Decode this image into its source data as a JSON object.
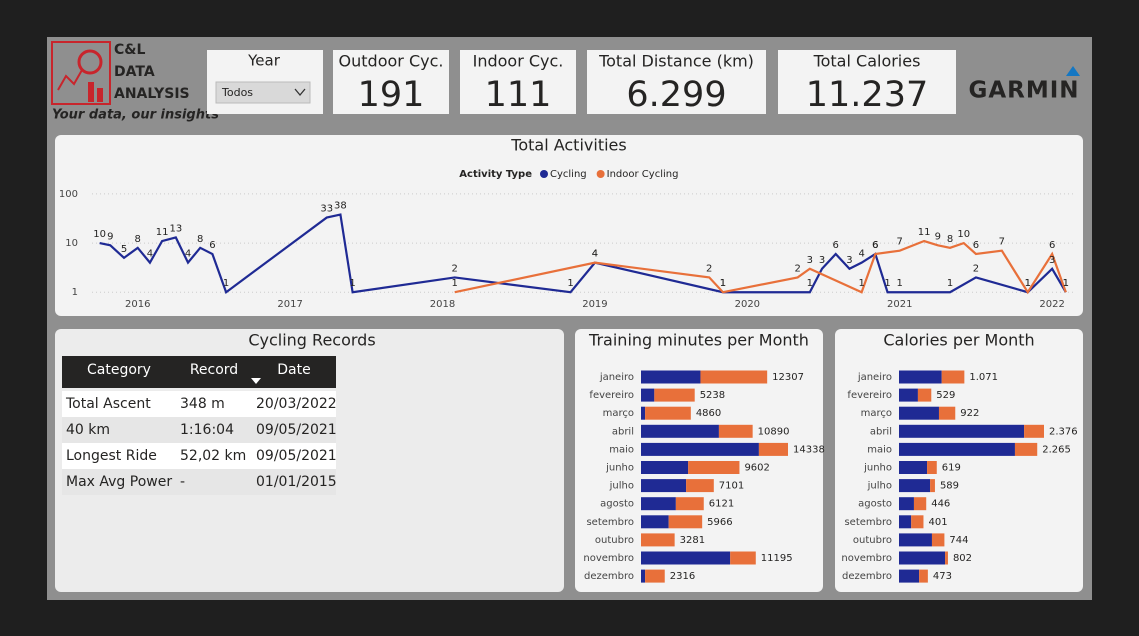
{
  "header": {
    "logo": [
      "C&L",
      "DATA",
      "ANALYSIS"
    ],
    "tagline": "Your data, our insights",
    "brand": "GARMIN"
  },
  "slicer": {
    "label": "Year",
    "value": "Todos"
  },
  "cards": [
    {
      "label": "Outdoor Cyc.",
      "value": "191"
    },
    {
      "label": "Indoor Cyc.",
      "value": "111"
    },
    {
      "label": "Total Distance (km)",
      "value": "6.299"
    },
    {
      "label": "Total Calories",
      "value": "11.237"
    }
  ],
  "table": {
    "title": "Cycling Records",
    "columns": [
      "Category",
      "Record",
      "Date"
    ],
    "rows": [
      [
        "Total Ascent",
        "348 m",
        "20/03/2022"
      ],
      [
        "40 km",
        "1:16:04",
        "09/05/2021"
      ],
      [
        "Longest Ride",
        "52,02 km",
        "09/05/2021"
      ],
      [
        "Max Avg Power",
        "-",
        "01/01/2015"
      ]
    ]
  },
  "chart_data": [
    {
      "type": "line",
      "title": "Total Activities",
      "legend_title": "Activity Type",
      "log_y": true,
      "grid": true,
      "xlim": [
        2015.7,
        2022.15
      ],
      "xticks": [
        2016,
        2017,
        2018,
        2019,
        2020,
        2021,
        2022
      ],
      "ylim": [
        0.8,
        120
      ],
      "yticks": [
        1,
        10,
        100
      ],
      "series": [
        {
          "name": "Cycling",
          "color": "#1f2a94",
          "x": [
            2015.75,
            2015.82,
            2015.91,
            2016.0,
            2016.08,
            2016.16,
            2016.25,
            2016.33,
            2016.41,
            2016.49,
            2016.58,
            2017.24,
            2017.33,
            2017.41,
            2018.08,
            2018.84,
            2019.0,
            2019.84,
            2020.41,
            2020.49,
            2020.58,
            2020.67,
            2020.75,
            2020.84,
            2020.92,
            2021.0,
            2021.33,
            2021.5,
            2021.84,
            2022.0,
            2022.09
          ],
          "values": [
            10,
            9,
            5,
            8,
            4,
            11,
            13,
            4,
            8,
            6,
            1,
            33,
            38,
            1,
            2,
            1,
            4,
            1,
            1,
            3,
            6,
            3,
            4,
            6,
            1,
            1,
            1,
            2,
            1,
            3,
            1
          ]
        },
        {
          "name": "Indoor Cycling",
          "color": "#e8703a",
          "x": [
            2018.08,
            2019.0,
            2019.75,
            2019.84,
            2020.33,
            2020.41,
            2020.75,
            2020.84,
            2021.0,
            2021.16,
            2021.25,
            2021.33,
            2021.42,
            2021.5,
            2021.67,
            2021.84,
            2022.0,
            2022.09
          ],
          "values": [
            1,
            4,
            2,
            1,
            2,
            3,
            1,
            6,
            7,
            11,
            9,
            8,
            10,
            6,
            7,
            1,
            6,
            1
          ]
        }
      ]
    },
    {
      "type": "bar",
      "title": "Training minutes per Month",
      "categories": [
        "janeiro",
        "fevereiro",
        "março",
        "abril",
        "maio",
        "junho",
        "julho",
        "agosto",
        "setembro",
        "outubro",
        "novembro",
        "dezembro"
      ],
      "series": [
        {
          "color": "#1f2a94",
          "values": [
            5800,
            1300,
            400,
            7600,
            11500,
            4600,
            4400,
            3400,
            2700,
            0,
            8700,
            400
          ]
        },
        {
          "color": "#e8703a",
          "values": [
            6507,
            3938,
            4460,
            3290,
            2838,
            5002,
            2701,
            2721,
            3266,
            3281,
            2495,
            1916
          ]
        }
      ],
      "totals": [
        12307,
        5238,
        4860,
        10890,
        14338,
        9602,
        7101,
        6121,
        5966,
        3281,
        11195,
        2316
      ]
    },
    {
      "type": "bar",
      "title": "Calories per Month",
      "categories": [
        "janeiro",
        "fevereiro",
        "março",
        "abril",
        "maio",
        "junho",
        "julho",
        "agosto",
        "setembro",
        "outubro",
        "novembro",
        "dezembro"
      ],
      "series": [
        {
          "color": "#1f2a94",
          "values": [
            700,
            310,
            655,
            2050,
            1900,
            460,
            510,
            245,
            200,
            540,
            755,
            330
          ]
        },
        {
          "color": "#e8703a",
          "values": [
            371,
            219,
            267,
            326,
            365,
            159,
            79,
            201,
            201,
            204,
            47,
            143
          ]
        }
      ],
      "totals": [
        1071,
        529,
        922,
        2376,
        2265,
        619,
        589,
        446,
        401,
        744,
        802,
        473
      ],
      "total_labels": [
        "1.071",
        "529",
        "922",
        "2.376",
        "2.265",
        "619",
        "589",
        "446",
        "401",
        "744",
        "802",
        "473"
      ]
    }
  ]
}
